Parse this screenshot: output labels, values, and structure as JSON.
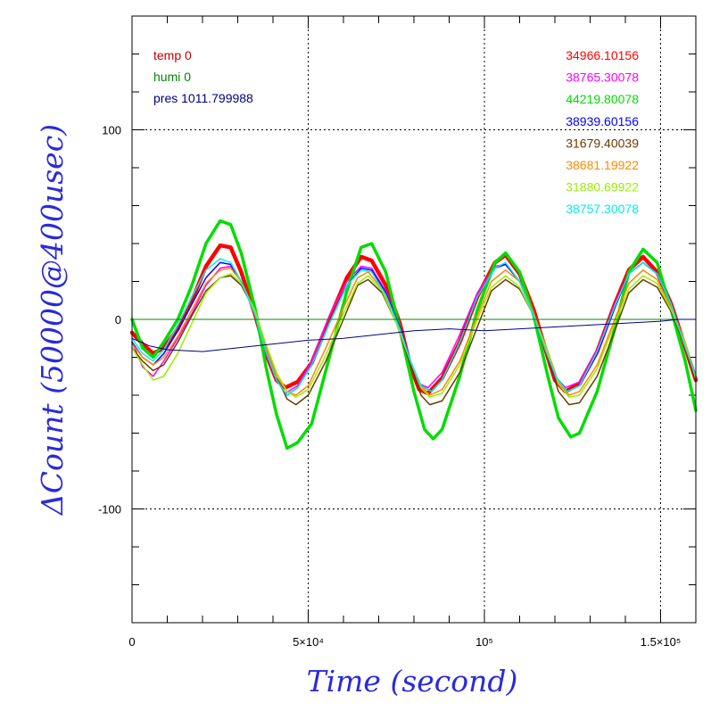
{
  "chart_data": {
    "type": "line",
    "xlabel": "Time (second)",
    "ylabel": "ΔCount (50000@400usec)",
    "xlim": [
      0,
      160000
    ],
    "ylim": [
      -160,
      160
    ],
    "x_ticks": [
      {
        "value": 0,
        "label": "0"
      },
      {
        "value": 50000,
        "label": "5×10⁴"
      },
      {
        "value": 100000,
        "label": "10⁵"
      },
      {
        "value": 150000,
        "label": "1.5×10⁵"
      }
    ],
    "y_ticks": [
      {
        "value": 100,
        "label": "100"
      },
      {
        "value": 0,
        "label": "0"
      },
      {
        "value": -100,
        "label": "-100"
      }
    ],
    "grid": "dotted at major ticks",
    "env_legend": [
      {
        "text": "temp 0",
        "color": "#c00000"
      },
      {
        "text": "humi 0",
        "color": "#008800"
      },
      {
        "text": "pres 1011.799988",
        "color": "#000080"
      }
    ],
    "series": [
      {
        "name": "34966.10156",
        "color": "#ff0000",
        "width": 4.5,
        "x": [
          0,
          3000,
          6000,
          9000,
          13000,
          17000,
          21000,
          25000,
          28000,
          31000,
          35000,
          38000,
          41000,
          43500,
          47000,
          51000,
          56000,
          61000,
          65000,
          68000,
          72000,
          76000,
          79000,
          81500,
          84000,
          88000,
          93000,
          98000,
          103000,
          106000,
          110000,
          114000,
          117500,
          120000,
          123000,
          127000,
          132000,
          137000,
          141000,
          145000,
          149000,
          153000,
          156500,
          160000
        ],
        "y": [
          -7,
          -13,
          -18,
          -15,
          -5,
          10,
          28,
          39,
          38,
          25,
          2,
          -18,
          -32,
          -36,
          -33,
          -23,
          0,
          22,
          33,
          31,
          18,
          -2,
          -25,
          -37,
          -39,
          -31,
          -12,
          12,
          30,
          34,
          24,
          5,
          -17,
          -32,
          -38,
          -34,
          -17,
          8,
          26,
          33,
          25,
          8,
          -12,
          -32
        ]
      },
      {
        "name": "38765.30078",
        "color": "#ff00ff",
        "width": 1.5,
        "x": [
          0,
          3000,
          6000,
          9000,
          13000,
          17000,
          21000,
          25000,
          28000,
          31000,
          35000,
          38000,
          41000,
          43500,
          47000,
          51000,
          56000,
          61000,
          65000,
          68000,
          72000,
          76000,
          79000,
          81500,
          84000,
          88000,
          93000,
          98000,
          103000,
          106000,
          110000,
          114000,
          117500,
          120000,
          123000,
          127000,
          132000,
          137000,
          141000,
          145000,
          149000,
          153000,
          156500,
          160000
        ],
        "y": [
          -12,
          -25,
          -30,
          -22,
          -10,
          3,
          18,
          27,
          28,
          20,
          2,
          -18,
          -32,
          -39,
          -35,
          -22,
          2,
          20,
          28,
          27,
          15,
          -4,
          -22,
          -34,
          -36,
          -28,
          -8,
          14,
          28,
          29,
          20,
          2,
          -17,
          -30,
          -36,
          -33,
          -16,
          8,
          24,
          30,
          24,
          8,
          -12,
          -30
        ]
      },
      {
        "name": "44219.80078",
        "color": "#00dd00",
        "width": 3.5,
        "x": [
          0,
          3000,
          6000,
          9000,
          13000,
          17000,
          21000,
          25000,
          28000,
          31000,
          35000,
          38000,
          41000,
          44000,
          47000,
          51000,
          56000,
          61000,
          65000,
          68000,
          72000,
          76000,
          80000,
          83000,
          85500,
          88000,
          93000,
          98000,
          103000,
          106000,
          110000,
          114000,
          118000,
          121000,
          124500,
          127000,
          132000,
          137000,
          141000,
          145000,
          149000,
          153000,
          157000,
          160000
        ],
        "y": [
          0,
          -15,
          -20,
          -12,
          0,
          18,
          40,
          52,
          50,
          35,
          5,
          -25,
          -50,
          -68,
          -65,
          -55,
          -20,
          15,
          38,
          40,
          25,
          -5,
          -38,
          -58,
          -63,
          -58,
          -30,
          5,
          30,
          35,
          25,
          2,
          -30,
          -52,
          -62,
          -60,
          -38,
          -5,
          25,
          37,
          30,
          5,
          -22,
          -48
        ]
      },
      {
        "name": "38939.60156",
        "color": "#0000ff",
        "width": 1.5,
        "x": [
          0,
          3000,
          6000,
          9000,
          13000,
          17000,
          21000,
          25000,
          28000,
          31000,
          35000,
          38000,
          41000,
          44000,
          47000,
          51000,
          56000,
          61000,
          65000,
          68000,
          72000,
          76000,
          79000,
          82000,
          85000,
          88000,
          93000,
          98000,
          103000,
          106000,
          110000,
          114000,
          117500,
          120500,
          123500,
          127000,
          132000,
          137000,
          141000,
          145000,
          149000,
          153000,
          156500,
          160000
        ],
        "y": [
          -12,
          -20,
          -24,
          -18,
          -6,
          8,
          22,
          30,
          29,
          20,
          3,
          -17,
          -32,
          -40,
          -36,
          -24,
          -2,
          18,
          27,
          26,
          14,
          -4,
          -22,
          -35,
          -38,
          -32,
          -12,
          12,
          27,
          29,
          20,
          2,
          -17,
          -31,
          -38,
          -35,
          -18,
          6,
          24,
          30,
          24,
          8,
          -12,
          -30
        ]
      },
      {
        "name": "31679.40039",
        "color": "#6b3a00",
        "width": 1.5,
        "x": [
          0,
          3000,
          6000,
          9000,
          13000,
          17000,
          21000,
          25000,
          28000,
          31000,
          35000,
          38000,
          41000,
          44000,
          46500,
          50000,
          55000,
          60000,
          64000,
          67000,
          71000,
          75000,
          79000,
          82000,
          84500,
          88000,
          93000,
          98000,
          102000,
          106000,
          110000,
          114000,
          118000,
          121000,
          124000,
          127000,
          132000,
          137000,
          141000,
          145000,
          149000,
          153000,
          157000,
          160000
        ],
        "y": [
          -15,
          -22,
          -27,
          -24,
          -12,
          2,
          15,
          22,
          23,
          18,
          4,
          -14,
          -30,
          -42,
          -45,
          -40,
          -22,
          0,
          18,
          21,
          14,
          -2,
          -24,
          -40,
          -45,
          -43,
          -28,
          -4,
          15,
          21,
          16,
          2,
          -20,
          -38,
          -45,
          -44,
          -30,
          -6,
          14,
          21,
          17,
          4,
          -14,
          -33
        ]
      },
      {
        "name": "38681.19922",
        "color": "#ff8800",
        "width": 1.5,
        "x": [
          0,
          3000,
          6000,
          9000,
          13000,
          17000,
          21000,
          25000,
          28000,
          31000,
          35000,
          38000,
          41000,
          44000,
          46500,
          50000,
          55000,
          60000,
          64000,
          67000,
          71000,
          75000,
          79000,
          82000,
          84500,
          88000,
          93000,
          98000,
          102000,
          106000,
          110000,
          114000,
          118000,
          121000,
          124000,
          127000,
          132000,
          137000,
          141000,
          145000,
          149000,
          153000,
          157000,
          160000
        ],
        "y": [
          -13,
          -20,
          -24,
          -20,
          -9,
          5,
          19,
          26,
          27,
          20,
          4,
          -15,
          -30,
          -38,
          -40,
          -35,
          -15,
          6,
          22,
          25,
          16,
          -2,
          -22,
          -35,
          -40,
          -37,
          -22,
          2,
          20,
          26,
          20,
          3,
          -17,
          -33,
          -40,
          -38,
          -24,
          0,
          19,
          26,
          21,
          6,
          -12,
          -31
        ]
      },
      {
        "name": "31880.69922",
        "color": "#99ee00",
        "width": 1.5,
        "x": [
          0,
          3000,
          6000,
          9000,
          13000,
          17000,
          21000,
          25000,
          28000,
          31000,
          35000,
          38000,
          41000,
          44000,
          46500,
          50000,
          55000,
          60000,
          64000,
          67000,
          71000,
          75000,
          79000,
          82000,
          84500,
          88000,
          93000,
          98000,
          102000,
          106000,
          110000,
          114000,
          118000,
          121000,
          124000,
          127000,
          132000,
          137000,
          141000,
          145000,
          149000,
          153000,
          157000,
          160000
        ],
        "y": [
          -15,
          -24,
          -32,
          -30,
          -18,
          -2,
          14,
          22,
          24,
          19,
          4,
          -13,
          -28,
          -38,
          -41,
          -37,
          -19,
          3,
          19,
          23,
          15,
          -2,
          -22,
          -36,
          -41,
          -39,
          -24,
          0,
          17,
          23,
          17,
          2,
          -18,
          -34,
          -41,
          -40,
          -26,
          -2,
          16,
          23,
          19,
          5,
          -13,
          -31
        ]
      },
      {
        "name": "38757.30078",
        "color": "#00eeee",
        "width": 1.5,
        "x": [
          0,
          3000,
          6000,
          9000,
          13000,
          17000,
          21000,
          25000,
          28000,
          31000,
          35000,
          38000,
          41000,
          44000,
          47000,
          51000,
          56000,
          61000,
          65000,
          68000,
          72000,
          76000,
          79000,
          82000,
          85000,
          88000,
          93000,
          98000,
          103000,
          106000,
          110000,
          114000,
          117500,
          120500,
          123500,
          127000,
          132000,
          137000,
          141000,
          145000,
          149000,
          153000,
          156500,
          160000
        ],
        "y": [
          -10,
          -18,
          -22,
          -16,
          -3,
          12,
          26,
          32,
          30,
          20,
          2,
          -17,
          -32,
          -40,
          -36,
          -24,
          -2,
          18,
          26,
          25,
          13,
          -5,
          -22,
          -35,
          -38,
          -32,
          -12,
          12,
          27,
          30,
          20,
          2,
          -17,
          -31,
          -38,
          -35,
          -17,
          7,
          24,
          30,
          24,
          8,
          -12,
          -30
        ]
      },
      {
        "name": "humi 0",
        "color": "#008800",
        "width": 1,
        "x": [
          0,
          160000
        ],
        "y": [
          0,
          0
        ]
      },
      {
        "name": "pres 1011.799988",
        "color": "#000080",
        "width": 1,
        "x": [
          0,
          5000,
          10000,
          20000,
          30000,
          40000,
          50000,
          60000,
          70000,
          80000,
          90000,
          100000,
          110000,
          120000,
          130000,
          140000,
          150000,
          155000,
          160000
        ],
        "y": [
          -10,
          -14,
          -16,
          -17,
          -15,
          -13,
          -11,
          -10,
          -8,
          -6,
          -5,
          -6,
          -5,
          -4,
          -3,
          -2,
          -1,
          0,
          0
        ]
      }
    ]
  }
}
